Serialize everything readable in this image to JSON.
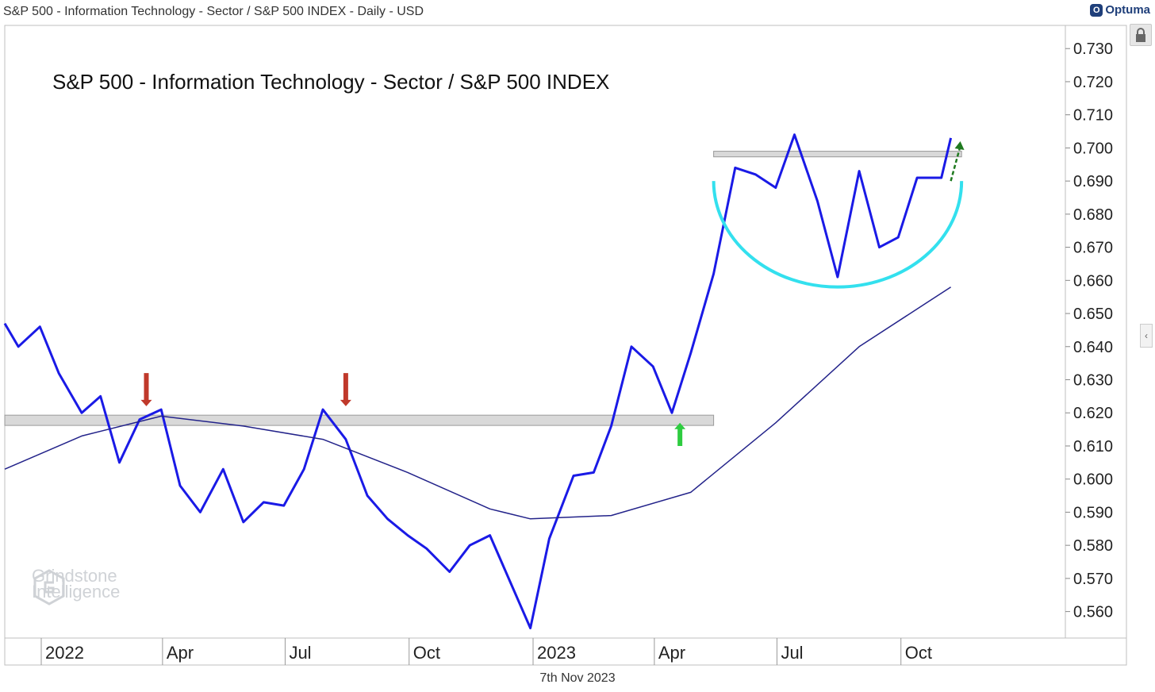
{
  "header": {
    "title": "S&P 500 - Information Technology - Sector / S&P 500 INDEX - Daily - USD",
    "brand": "Optuma",
    "date": "7th Nov 2023"
  },
  "watermark": {
    "line1": "Grindstone",
    "line2": "Intelligence"
  },
  "icons": {
    "lock": "lock-icon",
    "collapse": "chevron-left-icon"
  },
  "chart_data": {
    "type": "line",
    "title": "S&P 500 - Information Technology - Sector / S&P 500 INDEX",
    "x_ticks": [
      "2022",
      "Apr",
      "Jul",
      "Oct",
      "2023",
      "Apr",
      "Jul",
      "Oct"
    ],
    "y_ticks": [
      0.56,
      0.57,
      0.58,
      0.59,
      0.6,
      0.61,
      0.62,
      0.63,
      0.64,
      0.65,
      0.66,
      0.67,
      0.68,
      0.69,
      0.7,
      0.71,
      0.72,
      0.73
    ],
    "ylim": [
      0.552,
      0.737
    ],
    "colors": {
      "ratio": "#1a1ae6",
      "ma": "#23238a",
      "arc": "#33e0ee",
      "down_arrow": "#c0392b",
      "up_arrow": "#2ecc40"
    },
    "series": [
      {
        "type": "line",
        "x": [
          "2021-12-01",
          "2021-12-15",
          "2021-12-31",
          "2022-01-14",
          "2022-01-31",
          "2022-02-14",
          "2022-02-28",
          "2022-03-15",
          "2022-03-31",
          "2022-04-14",
          "2022-04-29",
          "2022-05-16",
          "2022-05-31",
          "2022-06-15",
          "2022-06-30",
          "2022-07-15",
          "2022-07-29",
          "2022-08-15",
          "2022-08-31",
          "2022-09-15",
          "2022-09-30",
          "2022-10-14",
          "2022-10-31",
          "2022-11-15",
          "2022-11-30",
          "2022-12-15",
          "2022-12-30",
          "2023-01-13",
          "2023-01-31",
          "2023-02-15",
          "2023-02-28",
          "2023-03-15",
          "2023-03-31",
          "2023-04-14",
          "2023-04-28",
          "2023-05-15",
          "2023-05-31",
          "2023-06-15",
          "2023-06-30",
          "2023-07-14",
          "2023-07-31",
          "2023-08-15",
          "2023-08-31",
          "2023-09-15",
          "2023-09-29",
          "2023-10-13",
          "2023-10-31",
          "2023-11-07"
        ],
        "y": [
          0.647,
          0.64,
          0.646,
          0.632,
          0.62,
          0.625,
          0.605,
          0.618,
          0.621,
          0.598,
          0.59,
          0.603,
          0.587,
          0.593,
          0.592,
          0.603,
          0.621,
          0.612,
          0.595,
          0.588,
          0.583,
          0.579,
          0.572,
          0.58,
          0.583,
          0.569,
          0.555,
          0.582,
          0.601,
          0.602,
          0.616,
          0.64,
          0.634,
          0.62,
          0.638,
          0.662,
          0.694,
          0.692,
          0.688,
          0.704,
          0.684,
          0.661,
          0.693,
          0.67,
          0.673,
          0.691,
          0.691,
          0.703
        ]
      },
      {
        "type": "line",
        "x": [
          "2021-12-01",
          "2022-01-31",
          "2022-03-31",
          "2022-05-31",
          "2022-07-29",
          "2022-09-30",
          "2022-11-30",
          "2022-12-30",
          "2023-02-28",
          "2023-04-28",
          "2023-06-30",
          "2023-08-31",
          "2023-11-07"
        ],
        "y": [
          0.603,
          0.613,
          0.619,
          0.616,
          0.612,
          0.602,
          0.591,
          0.588,
          0.589,
          0.596,
          0.617,
          0.64,
          0.658
        ]
      }
    ],
    "annotations": [
      {
        "type": "band",
        "ymin": 0.6162,
        "ymax": 0.6193,
        "x_start": "2021-12-01",
        "x_end": "2023-05-15"
      },
      {
        "type": "band",
        "ymin": 0.6973,
        "ymax": 0.699,
        "x_start": "2023-05-15",
        "x_end": "2023-11-15"
      },
      {
        "type": "arrow",
        "direction": "down",
        "at": "2022-03-20"
      },
      {
        "type": "arrow",
        "direction": "down",
        "at": "2022-08-15"
      },
      {
        "type": "arrow",
        "direction": "up",
        "at": "2023-04-20"
      },
      {
        "type": "arrow",
        "direction": "up",
        "at": "2023-11-07"
      },
      {
        "type": "arc",
        "from": "2023-05-15",
        "to": "2023-11-15",
        "bottom": 0.658
      }
    ]
  }
}
